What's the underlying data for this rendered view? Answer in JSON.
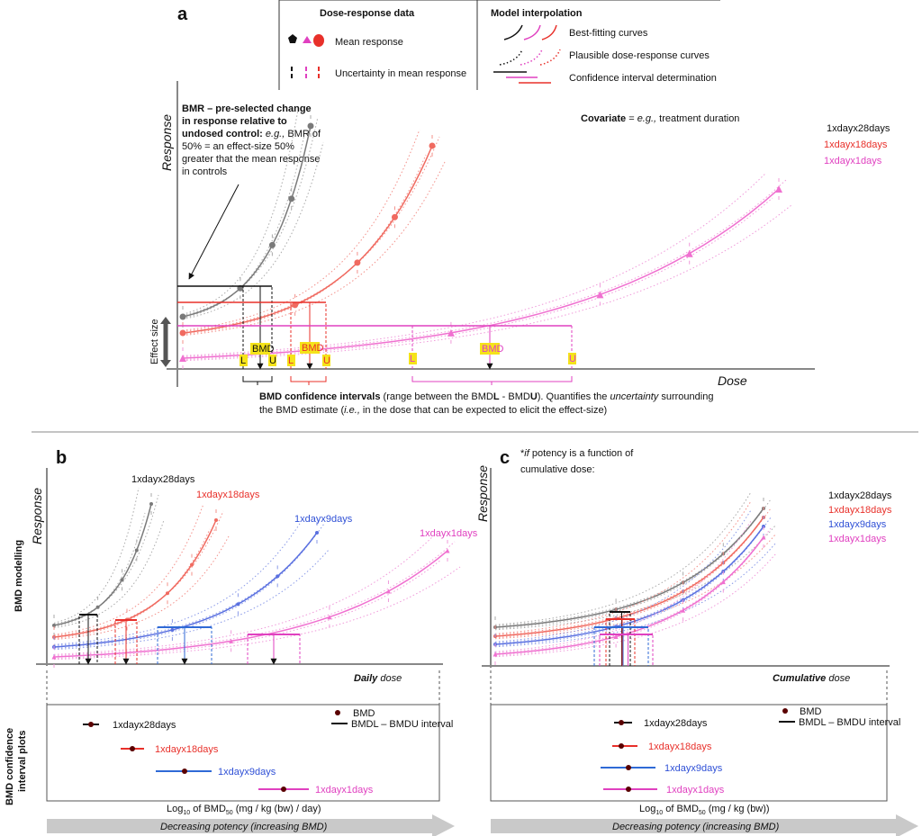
{
  "panel_a": {
    "letter": "a",
    "legend": {
      "data_title": "Dose-response data",
      "model_title": "Model interpolation",
      "mean": "Mean response",
      "uncertainty": "Uncertainty in mean response",
      "best": "Best-fitting curves",
      "plausible": "Plausible dose-response curves",
      "ci": "Confidence interval determination"
    },
    "y_label": "Response",
    "x_label": "Dose",
    "covariate": [
      "Covariate",
      " = ",
      "e.g.,",
      " treatment duration"
    ],
    "bmr": [
      [
        "BMR – pre-selected change"
      ],
      [
        "in response relative to"
      ],
      [
        "undosed control:",
        " ",
        "e.g.,",
        " BMR of"
      ],
      [
        "50% = an effect-size 50%"
      ],
      [
        "greater that the mean response"
      ],
      [
        "in controls"
      ]
    ],
    "series": [
      "1xdayx28days",
      "1xdayx18days",
      "1xdayx1days"
    ],
    "effect_size": "Effect size",
    "intervals": [
      {
        "bmd": "BMD",
        "l": "L",
        "u": "U"
      },
      {
        "bmd": "BMD",
        "l": "L",
        "u": "U"
      },
      {
        "bmd": "BMD",
        "l": "L",
        "u": "U"
      }
    ],
    "caption": [
      [
        "BMD confidence intervals",
        " (range between the BMD",
        "L",
        " - BMD",
        "U",
        "). Quantifies the ",
        "uncertainty",
        " surrounding"
      ],
      [
        "the BMD estimate (",
        "i.e.,",
        " in the dose that can be expected to elicit the effect-size)"
      ]
    ]
  },
  "panel_b": {
    "letter": "b",
    "row_top": "BMD modelling",
    "row_bottom": [
      "BMD confidence",
      "interval plots"
    ],
    "y_label": "Response",
    "x_label": [
      "Daily",
      " dose"
    ],
    "series": [
      "1xdayx28days",
      "1xdayx18days",
      "1xdayx9days",
      "1xdayx1days"
    ],
    "ci_labels": [
      "1xdayx28days",
      "1xdayx18days",
      "1xdayx9days",
      "1xdayx1days"
    ],
    "legend": {
      "bmd": "BMD",
      "interval": "BMDL – BMDU interval"
    },
    "ci_axis": [
      "Log",
      "10",
      " of BMD",
      "50",
      " (mg / kg (bw) / day)"
    ],
    "arrow": "Decreasing potency (increasing BMD)"
  },
  "panel_c": {
    "letter": "c",
    "heading": [
      [
        "*",
        "if",
        " potency is a function of"
      ],
      [
        "cumulative dose:"
      ]
    ],
    "y_label": "Response",
    "x_label": [
      "Cumulative",
      " dose"
    ],
    "series": [
      "1xdayx28days",
      "1xdayx18days",
      "1xdayx9days",
      "1xdayx1days"
    ],
    "ci_labels": [
      "1xdayx28days",
      "1xdayx18days",
      "1xdayx9days",
      "1xdayx1days"
    ],
    "legend": {
      "bmd": "BMD",
      "interval": "BMDL – BMDU interval"
    },
    "ci_axis": [
      "Log",
      "10",
      " of BMD",
      "50",
      " (mg / kg (bw))"
    ],
    "arrow": "Decreasing potency (increasing BMD)"
  }
}
